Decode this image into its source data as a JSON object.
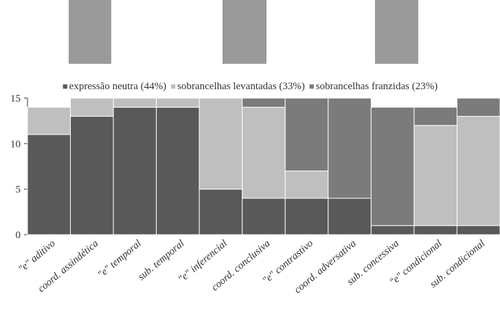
{
  "chart_data": {
    "type": "stacked-bar",
    "categories": [
      "\"e\" aditivo",
      "coord. assindética",
      "\"e\" temporal",
      "sub. temporal",
      "\"e\" inferencial",
      "coord. conclusiva",
      "\"e\" contrastivo",
      "coord. adversativa",
      "sub. concessiva",
      "\"e\" condicional",
      "sub. condicional"
    ],
    "series": [
      {
        "name": "expressão neutra (44%)",
        "color": "#595959",
        "values": [
          11,
          13,
          14,
          14,
          5,
          4,
          4,
          4,
          1,
          1,
          1
        ]
      },
      {
        "name": "sobrancelhas levantadas (33%)",
        "color": "#bfbfbf",
        "values": [
          3,
          2,
          1,
          1,
          10,
          10,
          3,
          0,
          0,
          11,
          12
        ]
      },
      {
        "name": "sobrancelhas franzidas (23%)",
        "color": "#7b7b7b",
        "values": [
          0,
          0,
          0,
          0,
          0,
          1,
          8,
          11,
          13,
          2,
          2
        ]
      }
    ],
    "ylim": [
      0,
      15
    ],
    "yticks": [
      0,
      5,
      10,
      15
    ],
    "legend": "top"
  }
}
